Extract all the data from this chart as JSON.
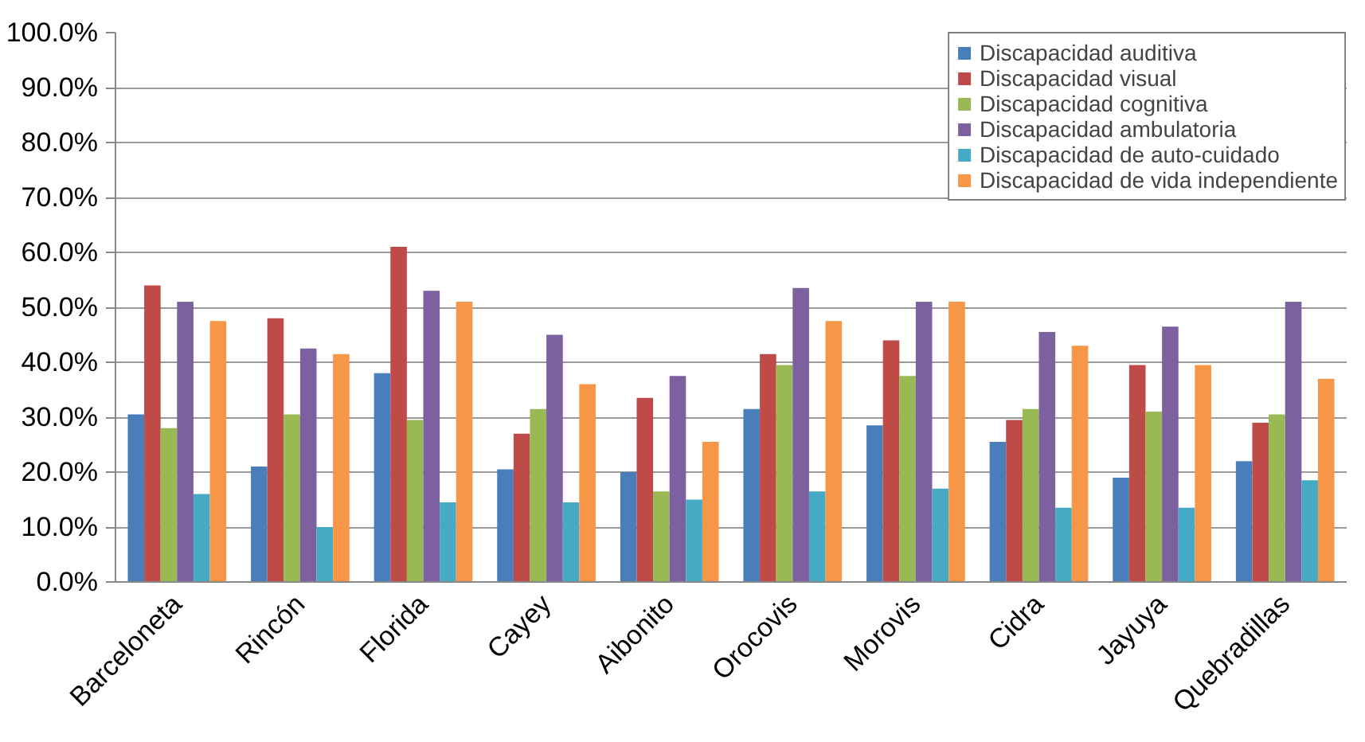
{
  "chart_data": {
    "type": "bar",
    "categories": [
      "Barceloneta",
      "Rincón",
      "Florida",
      "Cayey",
      "Aibonito",
      "Orocovis",
      "Morovis",
      "Cidra",
      "Jayuya",
      "Quebradillas"
    ],
    "series": [
      {
        "name": "Discapacidad auditiva",
        "color": "#4a7ebb",
        "values": [
          30.5,
          21,
          38,
          20.5,
          20,
          31.5,
          28.5,
          25.5,
          19,
          22
        ]
      },
      {
        "name": "Discapacidad visual",
        "color": "#be4b48",
        "values": [
          54,
          48,
          61,
          27,
          33.5,
          41.5,
          44,
          29.5,
          39.5,
          29
        ]
      },
      {
        "name": "Discapacidad cognitiva",
        "color": "#98b954",
        "values": [
          28,
          30.5,
          29.5,
          31.5,
          16.5,
          39.5,
          37.5,
          31.5,
          31,
          30.5
        ]
      },
      {
        "name": "Discapacidad ambulatoria",
        "color": "#7d60a0",
        "values": [
          51,
          42.5,
          53,
          45,
          37.5,
          53.5,
          51,
          45.5,
          46.5,
          51
        ]
      },
      {
        "name": "Discapacidad de auto-cuidado",
        "color": "#46aac5",
        "values": [
          16,
          10,
          14.5,
          14.5,
          15,
          16.5,
          17,
          13.5,
          13.5,
          18.5
        ]
      },
      {
        "name": "Discapacidad de vida independiente",
        "color": "#f79646",
        "values": [
          47.5,
          41.5,
          51,
          36,
          25.5,
          47.5,
          51,
          43,
          39.5,
          37
        ]
      }
    ],
    "ylim": [
      0,
      100
    ],
    "yticks": [
      {
        "value": 0,
        "label": "0.0%"
      },
      {
        "value": 10,
        "label": "10.0%"
      },
      {
        "value": 20,
        "label": "20.0%"
      },
      {
        "value": 30,
        "label": "30.0%"
      },
      {
        "value": 40,
        "label": "40.0%"
      },
      {
        "value": 50,
        "label": "50.0%"
      },
      {
        "value": 60,
        "label": "60.0%"
      },
      {
        "value": 70,
        "label": "70.0%"
      },
      {
        "value": 80,
        "label": "80.0%"
      },
      {
        "value": 90,
        "label": "90.0%"
      },
      {
        "value": 100,
        "label": "100.0%"
      }
    ],
    "grid": "y",
    "legend": "top right"
  }
}
